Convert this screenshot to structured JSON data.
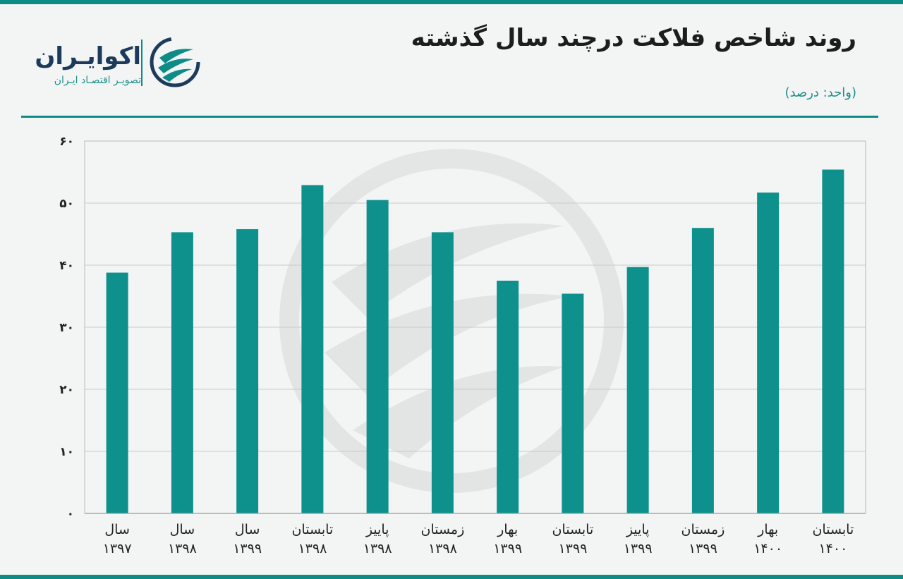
{
  "header": {
    "title": "روند شاخص فلاکت درچند سال گذشته",
    "unit": "(واحد: درصد)"
  },
  "logo": {
    "name": "اکوایـران",
    "tagline": "تصویـر اقتصـاد ایـران",
    "icon": "ecoiran-swoosh-icon"
  },
  "colors": {
    "accent": "#0d8c87",
    "bar": "#0e918c",
    "text": "#1d1d1d"
  },
  "chart_data": {
    "type": "bar",
    "categories": [
      [
        "سال",
        "۱۳۹۷"
      ],
      [
        "سال",
        "۱۳۹۸"
      ],
      [
        "سال",
        "۱۳۹۹"
      ],
      [
        "تابستان",
        "۱۳۹۸"
      ],
      [
        "پاییز",
        "۱۳۹۸"
      ],
      [
        "زمستان",
        "۱۳۹۸"
      ],
      [
        "بهار",
        "۱۳۹۹"
      ],
      [
        "تابستان",
        "۱۳۹۹"
      ],
      [
        "پاییز",
        "۱۳۹۹"
      ],
      [
        "زمستان",
        "۱۳۹۹"
      ],
      [
        "بهار",
        "۱۴۰۰"
      ],
      [
        "تابستان",
        "۱۴۰۰"
      ]
    ],
    "values": [
      38.8,
      45.3,
      45.8,
      52.9,
      50.5,
      45.3,
      37.5,
      35.4,
      39.7,
      46.0,
      51.7,
      55.4
    ],
    "ylim": [
      0,
      60
    ],
    "yticks": [
      0,
      10,
      20,
      30,
      40,
      50,
      60
    ],
    "ytick_labels": [
      "۰",
      "۱۰",
      "۲۰",
      "۳۰",
      "۴۰",
      "۵۰",
      "۶۰"
    ],
    "grid": true,
    "title": "روند شاخص فلاکت درچند سال گذشته",
    "ylabel": "(واحد: درصد)"
  }
}
